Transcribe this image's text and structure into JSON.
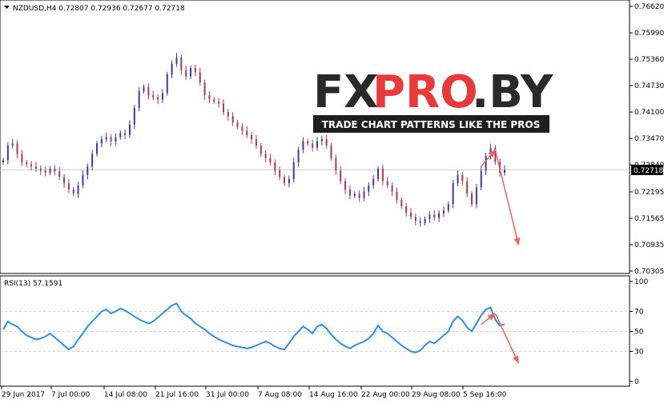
{
  "chart_data": [
    {
      "type": "candlestick",
      "title": "NZDUSD,H4  0.72807 0.72936 0.72677 0.72718",
      "ylim": [
        0.70305,
        0.7662
      ],
      "y_ticks": [
        "0.76620",
        "0.75990",
        "0.75360",
        "0.74730",
        "0.74100",
        "0.73470",
        "0.72840",
        "0.72195",
        "0.71565",
        "0.70935",
        "0.70305"
      ],
      "current_price": "0.72718",
      "x_ticks": [
        "29 Jun 2017",
        "7 Jul 00:00",
        "14 Jul 08:00",
        "21 Jul 16:00",
        "31 Jul 00:00",
        "7 Aug 08:00",
        "14 Aug 16:00",
        "22 Aug 00:00",
        "29 Aug 08:00",
        "5 Sep 16:00"
      ],
      "closes": [
        0.7295,
        0.733,
        0.7335,
        0.731,
        0.729,
        0.7285,
        0.728,
        0.7275,
        0.727,
        0.7265,
        0.7275,
        0.7268,
        0.7255,
        0.724,
        0.7225,
        0.7215,
        0.7235,
        0.726,
        0.728,
        0.731,
        0.7335,
        0.7345,
        0.735,
        0.734,
        0.735,
        0.736,
        0.7355,
        0.738,
        0.742,
        0.746,
        0.747,
        0.745,
        0.7445,
        0.744,
        0.7455,
        0.75,
        0.7525,
        0.754,
        0.751,
        0.7495,
        0.7515,
        0.7505,
        0.748,
        0.745,
        0.744,
        0.7435,
        0.743,
        0.741,
        0.74,
        0.7385,
        0.7375,
        0.7365,
        0.7355,
        0.7345,
        0.733,
        0.731,
        0.73,
        0.729,
        0.727,
        0.7255,
        0.724,
        0.725,
        0.729,
        0.732,
        0.734,
        0.7335,
        0.7325,
        0.734,
        0.7345,
        0.733,
        0.73,
        0.727,
        0.7245,
        0.7225,
        0.721,
        0.7215,
        0.7205,
        0.722,
        0.7235,
        0.725,
        0.7275,
        0.7245,
        0.7235,
        0.722,
        0.72,
        0.7185,
        0.717,
        0.716,
        0.715,
        0.7145,
        0.7155,
        0.7165,
        0.7158,
        0.7168,
        0.7175,
        0.719,
        0.724,
        0.726,
        0.7245,
        0.7215,
        0.719,
        0.723,
        0.727,
        0.7305,
        0.7325,
        0.729,
        0.7265,
        0.7272
      ],
      "annotations": [
        {
          "type": "arrow",
          "from": [
            102,
            0.728
          ],
          "to": [
            105,
            0.732
          ],
          "color": "#f06060"
        },
        {
          "type": "arrow",
          "from": [
            105,
            0.732
          ],
          "to": [
            110,
            0.7092
          ],
          "color": "#f06060"
        }
      ]
    },
    {
      "type": "line",
      "title": "RSI(13) 57.1591",
      "ylim": [
        0,
        100
      ],
      "y_ticks": [
        "100",
        "70",
        "50",
        "30",
        "0"
      ],
      "series": [
        {
          "values": [
            52,
            60,
            57,
            55,
            50,
            46,
            44,
            42,
            43,
            45,
            48,
            44,
            40,
            36,
            32,
            35,
            42,
            48,
            55,
            60,
            65,
            70,
            72,
            68,
            70,
            73,
            71,
            68,
            65,
            62,
            60,
            58,
            60,
            64,
            68,
            72,
            76,
            78,
            70,
            66,
            63,
            58,
            55,
            52,
            48,
            45,
            42,
            40,
            38,
            36,
            35,
            34,
            33,
            34,
            36,
            38,
            40,
            38,
            35,
            33,
            32,
            38,
            45,
            50,
            55,
            52,
            48,
            55,
            57,
            53,
            47,
            42,
            38,
            35,
            33,
            36,
            38,
            40,
            43,
            48,
            56,
            50,
            48,
            44,
            40,
            36,
            33,
            30,
            29,
            31,
            36,
            40,
            38,
            42,
            46,
            50,
            60,
            65,
            61,
            54,
            50,
            58,
            66,
            72,
            74,
            62,
            56,
            57
          ]
        }
      ],
      "color": "#2f8de4",
      "annotations": [
        {
          "type": "arrow",
          "from": [
            102,
            57
          ],
          "to": [
            105,
            68
          ],
          "color": "#f06060"
        },
        {
          "type": "arrow",
          "from": [
            105,
            68
          ],
          "to": [
            110,
            18
          ],
          "color": "#f06060"
        }
      ]
    }
  ],
  "watermark": {
    "brand_part1": "FX",
    "brand_part2": "PRO",
    "brand_part3": ".BY",
    "tagline": "TRADE CHART PATTERNS LIKE THE PROS"
  },
  "colors": {
    "bull": "#3a3aa0",
    "bear": "#a03a5a",
    "rsi": "#2f8de4",
    "arrow": "#f06060",
    "logo_dark": "#2a2a2a",
    "logo_red": "#e83a3a"
  }
}
